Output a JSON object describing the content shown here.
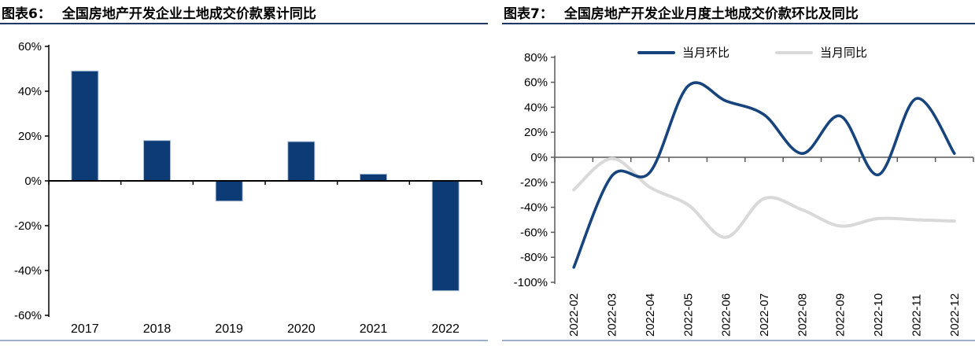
{
  "left_chart": {
    "label": "图表6：",
    "title": "全国房地产开发企业土地成交价款累计同比"
  },
  "right_chart": {
    "label": "图表7：",
    "title": "全国房地产开发企业月度土地成交价款环比及同比"
  },
  "theme": {
    "background": "#FFFFFF",
    "title_color": "#000000",
    "title_underline": "#1F3864",
    "bottom_rule": "#9DAECB",
    "left_axis_color": "#000000",
    "right_axis_color": "#595959",
    "tick_label_color": "#000000"
  },
  "chart_data": [
    {
      "type": "bar",
      "title": "全国房地产开发企业土地成交价款累计同比",
      "categories": [
        "2017",
        "2018",
        "2019",
        "2020",
        "2021",
        "2022"
      ],
      "values": [
        49,
        18,
        -9,
        17.5,
        3,
        -49
      ],
      "value_unit": "%",
      "ylim": [
        -60,
        60
      ],
      "ytick_step": 20,
      "ytick_labels": [
        "60%",
        "40%",
        "20%",
        "0%",
        "-20%",
        "-40%",
        "-60%"
      ],
      "grid": false,
      "bar_color": "#0D3B76",
      "bar_border_color": "#A9BDD6",
      "xlabel": "",
      "ylabel": ""
    },
    {
      "type": "line",
      "title": "全国房地产开发企业月度土地成交价款环比及同比",
      "x": [
        "2022-02",
        "2022-03",
        "2022-04",
        "2022-05",
        "2022-06",
        "2022-07",
        "2022-08",
        "2022-09",
        "2022-10",
        "2022-11",
        "2022-12"
      ],
      "series": [
        {
          "name": "当月环比",
          "color": "#18447E",
          "width": 3.6,
          "values": [
            -88,
            -15,
            -12,
            57,
            45,
            34,
            3,
            33,
            -14,
            47,
            3
          ]
        },
        {
          "name": "当月同比",
          "color": "#D9D9D9",
          "width": 4,
          "values": [
            -26,
            -1,
            -24,
            -38,
            -64,
            -33,
            -42,
            -55,
            -49,
            -50,
            -51
          ]
        }
      ],
      "value_unit": "%",
      "ylim": [
        -100,
        80
      ],
      "ytick_step": 20,
      "ytick_labels": [
        "80%",
        "60%",
        "40%",
        "20%",
        "0%",
        "-20%",
        "-40%",
        "-60%",
        "-80%",
        "-100%"
      ],
      "grid": false,
      "smooth": true,
      "legend_position": "top"
    }
  ]
}
